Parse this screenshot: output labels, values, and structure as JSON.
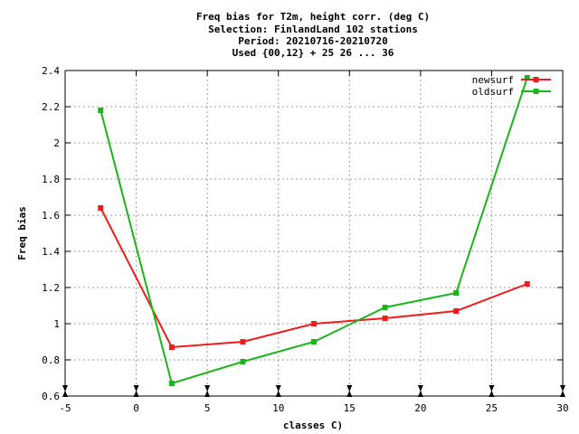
{
  "chart_data": {
    "type": "line",
    "title": [
      "Freq bias  for T2m, height corr. (deg C)",
      "Selection: FinlandLand    102 stations",
      "Period: 20210716-20210720",
      "Used {00,12} + 25 26 ... 36"
    ],
    "xlabel": "classes C)",
    "ylabel": "Freq bias",
    "xlim": [
      -5,
      30
    ],
    "ylim": [
      0.6,
      2.4
    ],
    "xticks": [
      "-5",
      "0",
      "5",
      "10",
      "15",
      "20",
      "25",
      "30"
    ],
    "xtick_values": [
      -5,
      0,
      5,
      10,
      15,
      20,
      25,
      30
    ],
    "yticks": [
      "0.6",
      "0.8",
      "1",
      "1.2",
      "1.4",
      "1.6",
      "1.8",
      "2",
      "2.2",
      "2.4"
    ],
    "ytick_values": [
      0.6,
      0.8,
      1.0,
      1.2,
      1.4,
      1.6,
      1.8,
      2.0,
      2.2,
      2.4
    ],
    "grid": true,
    "legend_position": "top-right",
    "x": [
      -2.5,
      2.5,
      7.5,
      12.5,
      17.5,
      22.5,
      27.5
    ],
    "series": [
      {
        "name": "newsurf",
        "color": "#ee1c1c",
        "values": [
          1.64,
          0.87,
          0.9,
          1.0,
          1.03,
          1.07,
          1.22
        ]
      },
      {
        "name": "oldsurf",
        "color": "#1cb41c",
        "values": [
          2.18,
          0.67,
          0.79,
          0.9,
          1.09,
          1.17,
          2.36
        ]
      }
    ]
  }
}
